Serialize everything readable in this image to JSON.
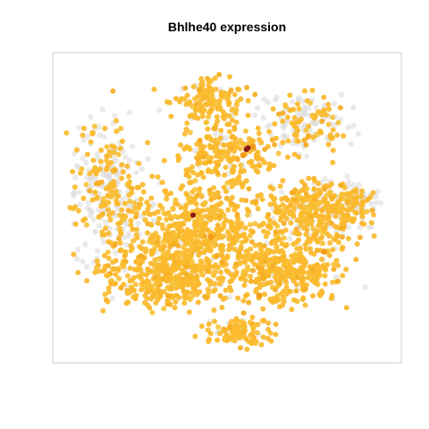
{
  "chart_data": {
    "type": "scatter",
    "title": "Bhlhe40 expression",
    "xlabel": "",
    "ylabel": "",
    "axes_visible": false,
    "frame": true,
    "grid": false,
    "legend": "none",
    "colors": {
      "frame": "#cccccc",
      "background": "#ffffff",
      "expression_none": "#dcdcdc",
      "expression_mid": "#fbba2c",
      "expression_high": "#f39a18",
      "expression_max": "#8b1a1a"
    },
    "clusters": [
      {
        "name": "top-center",
        "cx": 0.45,
        "cy": 0.86,
        "rx": 0.1,
        "ry": 0.08,
        "n": 150,
        "gray_fraction": 0.08
      },
      {
        "name": "top-right",
        "cx": 0.74,
        "cy": 0.78,
        "rx": 0.13,
        "ry": 0.09,
        "n": 170,
        "gray_fraction": 0.55
      },
      {
        "name": "upper-center",
        "cx": 0.5,
        "cy": 0.69,
        "rx": 0.13,
        "ry": 0.07,
        "n": 170,
        "gray_fraction": 0.1
      },
      {
        "name": "left",
        "cx": 0.14,
        "cy": 0.56,
        "rx": 0.1,
        "ry": 0.21,
        "n": 330,
        "gray_fraction": 0.55
      },
      {
        "name": "center",
        "cx": 0.44,
        "cy": 0.42,
        "rx": 0.2,
        "ry": 0.18,
        "n": 560,
        "gray_fraction": 0.05
      },
      {
        "name": "center-left",
        "cx": 0.3,
        "cy": 0.28,
        "rx": 0.17,
        "ry": 0.11,
        "n": 380,
        "gray_fraction": 0.06
      },
      {
        "name": "right-upper",
        "cx": 0.78,
        "cy": 0.49,
        "rx": 0.14,
        "ry": 0.1,
        "n": 320,
        "gray_fraction": 0.18
      },
      {
        "name": "right-lower",
        "cx": 0.7,
        "cy": 0.29,
        "rx": 0.15,
        "ry": 0.11,
        "n": 330,
        "gray_fraction": 0.05
      },
      {
        "name": "bottom",
        "cx": 0.54,
        "cy": 0.08,
        "rx": 0.09,
        "ry": 0.05,
        "n": 110,
        "gray_fraction": 0.1
      },
      {
        "name": "far-right",
        "cx": 0.9,
        "cy": 0.52,
        "rx": 0.05,
        "ry": 0.06,
        "n": 70,
        "gray_fraction": 0.55
      }
    ],
    "high_points": [
      {
        "x": 0.56,
        "y": 0.7
      },
      {
        "x": 0.58,
        "y": 0.71
      },
      {
        "x": 0.55,
        "y": 0.68
      },
      {
        "x": 0.45,
        "y": 0.4
      },
      {
        "x": 0.6,
        "y": 0.2
      },
      {
        "x": 0.8,
        "y": 0.35
      }
    ],
    "max_points": [
      {
        "x": 0.56,
        "y": 0.7
      },
      {
        "x": 0.565,
        "y": 0.705
      },
      {
        "x": 0.395,
        "y": 0.475
      }
    ]
  }
}
